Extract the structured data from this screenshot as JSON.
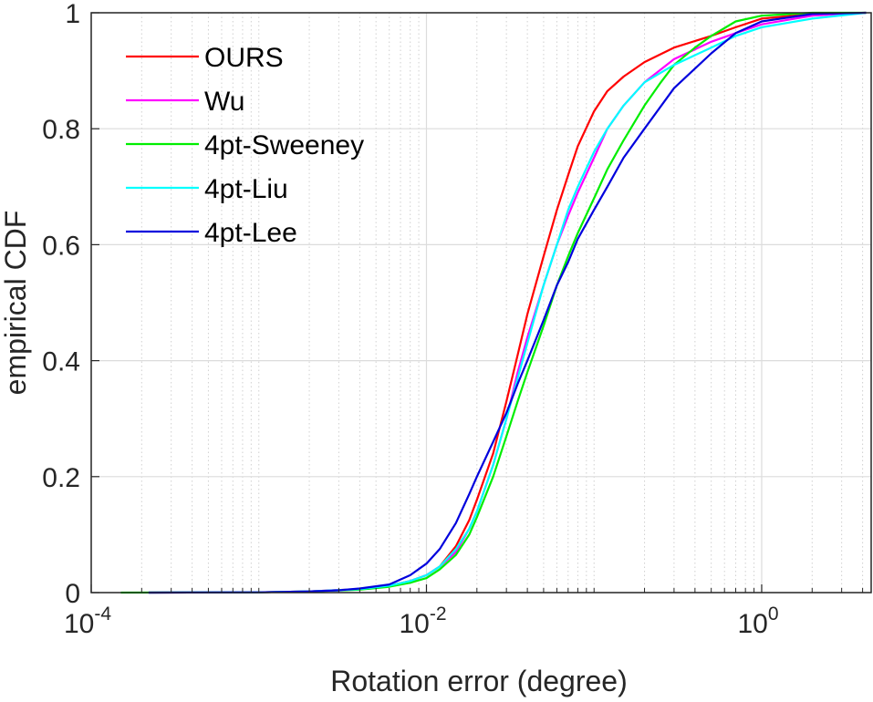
{
  "chart_data": {
    "type": "line",
    "title": "",
    "xlabel": "Rotation error (degree)",
    "ylabel": "empirical CDF",
    "xscale": "log",
    "xlim": [
      0.0001,
      4.5
    ],
    "ylim": [
      0,
      1
    ],
    "grid": true,
    "legend_position": "top-left",
    "x_ticks": [
      {
        "value": 0.0001,
        "base": "10",
        "exp": "-4"
      },
      {
        "value": 0.01,
        "base": "10",
        "exp": "-2"
      },
      {
        "value": 1,
        "base": "10",
        "exp": "0"
      }
    ],
    "y_ticks": [
      {
        "value": 0,
        "label": "0"
      },
      {
        "value": 0.2,
        "label": "0.2"
      },
      {
        "value": 0.4,
        "label": "0.4"
      },
      {
        "value": 0.6,
        "label": "0.6"
      },
      {
        "value": 0.8,
        "label": "0.8"
      },
      {
        "value": 1,
        "label": "1"
      }
    ],
    "series": [
      {
        "name": "OURS",
        "color": "#ff0000",
        "points": [
          [
            0.00022,
            0
          ],
          [
            0.001,
            0.0005
          ],
          [
            0.002,
            0.002
          ],
          [
            0.004,
            0.006
          ],
          [
            0.006,
            0.012
          ],
          [
            0.008,
            0.02
          ],
          [
            0.01,
            0.03
          ],
          [
            0.012,
            0.045
          ],
          [
            0.015,
            0.08
          ],
          [
            0.018,
            0.125
          ],
          [
            0.02,
            0.16
          ],
          [
            0.025,
            0.24
          ],
          [
            0.03,
            0.33
          ],
          [
            0.035,
            0.41
          ],
          [
            0.04,
            0.48
          ],
          [
            0.05,
            0.58
          ],
          [
            0.06,
            0.66
          ],
          [
            0.07,
            0.72
          ],
          [
            0.08,
            0.77
          ],
          [
            0.1,
            0.83
          ],
          [
            0.12,
            0.865
          ],
          [
            0.15,
            0.89
          ],
          [
            0.2,
            0.915
          ],
          [
            0.3,
            0.94
          ],
          [
            0.5,
            0.96
          ],
          [
            0.7,
            0.975
          ],
          [
            1,
            0.99
          ],
          [
            2,
            0.998
          ],
          [
            4.2,
            1
          ]
        ]
      },
      {
        "name": "Wu",
        "color": "#ff00ff",
        "points": [
          [
            0.00022,
            0
          ],
          [
            0.001,
            0.0005
          ],
          [
            0.002,
            0.002
          ],
          [
            0.004,
            0.006
          ],
          [
            0.006,
            0.012
          ],
          [
            0.008,
            0.02
          ],
          [
            0.01,
            0.03
          ],
          [
            0.012,
            0.045
          ],
          [
            0.015,
            0.07
          ],
          [
            0.018,
            0.11
          ],
          [
            0.02,
            0.14
          ],
          [
            0.025,
            0.22
          ],
          [
            0.03,
            0.3
          ],
          [
            0.035,
            0.38
          ],
          [
            0.04,
            0.44
          ],
          [
            0.05,
            0.53
          ],
          [
            0.06,
            0.6
          ],
          [
            0.07,
            0.65
          ],
          [
            0.08,
            0.69
          ],
          [
            0.1,
            0.75
          ],
          [
            0.12,
            0.8
          ],
          [
            0.15,
            0.84
          ],
          [
            0.2,
            0.88
          ],
          [
            0.3,
            0.92
          ],
          [
            0.5,
            0.95
          ],
          [
            0.7,
            0.965
          ],
          [
            1,
            0.98
          ],
          [
            2,
            0.995
          ],
          [
            4.2,
            1
          ]
        ]
      },
      {
        "name": "4pt-Sweeney",
        "color": "#00ee00",
        "points": [
          [
            0.00015,
            0
          ],
          [
            0.001,
            0.0005
          ],
          [
            0.002,
            0.002
          ],
          [
            0.004,
            0.005
          ],
          [
            0.006,
            0.01
          ],
          [
            0.008,
            0.017
          ],
          [
            0.01,
            0.025
          ],
          [
            0.012,
            0.04
          ],
          [
            0.015,
            0.065
          ],
          [
            0.018,
            0.1
          ],
          [
            0.02,
            0.13
          ],
          [
            0.025,
            0.2
          ],
          [
            0.03,
            0.27
          ],
          [
            0.035,
            0.33
          ],
          [
            0.04,
            0.38
          ],
          [
            0.05,
            0.46
          ],
          [
            0.06,
            0.53
          ],
          [
            0.07,
            0.58
          ],
          [
            0.08,
            0.62
          ],
          [
            0.1,
            0.68
          ],
          [
            0.12,
            0.73
          ],
          [
            0.15,
            0.78
          ],
          [
            0.2,
            0.84
          ],
          [
            0.25,
            0.88
          ],
          [
            0.3,
            0.91
          ],
          [
            0.4,
            0.94
          ],
          [
            0.5,
            0.96
          ],
          [
            0.7,
            0.985
          ],
          [
            1,
            0.995
          ],
          [
            2,
            1
          ],
          [
            4.2,
            1
          ]
        ]
      },
      {
        "name": "4pt-Liu",
        "color": "#00ffff",
        "points": [
          [
            0.00022,
            0
          ],
          [
            0.001,
            0.0005
          ],
          [
            0.002,
            0.002
          ],
          [
            0.004,
            0.006
          ],
          [
            0.006,
            0.012
          ],
          [
            0.008,
            0.02
          ],
          [
            0.01,
            0.03
          ],
          [
            0.012,
            0.045
          ],
          [
            0.015,
            0.075
          ],
          [
            0.018,
            0.11
          ],
          [
            0.02,
            0.14
          ],
          [
            0.025,
            0.22
          ],
          [
            0.03,
            0.3
          ],
          [
            0.035,
            0.37
          ],
          [
            0.04,
            0.43
          ],
          [
            0.05,
            0.53
          ],
          [
            0.06,
            0.6
          ],
          [
            0.07,
            0.66
          ],
          [
            0.08,
            0.7
          ],
          [
            0.1,
            0.76
          ],
          [
            0.12,
            0.8
          ],
          [
            0.15,
            0.84
          ],
          [
            0.2,
            0.88
          ],
          [
            0.3,
            0.91
          ],
          [
            0.5,
            0.94
          ],
          [
            0.7,
            0.96
          ],
          [
            1,
            0.975
          ],
          [
            2,
            0.99
          ],
          [
            4.2,
            1
          ]
        ]
      },
      {
        "name": "4pt-Lee",
        "color": "#0000dd",
        "points": [
          [
            0.00022,
            0
          ],
          [
            0.001,
            0.0005
          ],
          [
            0.002,
            0.002
          ],
          [
            0.003,
            0.004
          ],
          [
            0.004,
            0.007
          ],
          [
            0.006,
            0.014
          ],
          [
            0.008,
            0.03
          ],
          [
            0.01,
            0.05
          ],
          [
            0.012,
            0.075
          ],
          [
            0.015,
            0.12
          ],
          [
            0.018,
            0.17
          ],
          [
            0.02,
            0.2
          ],
          [
            0.025,
            0.26
          ],
          [
            0.03,
            0.31
          ],
          [
            0.035,
            0.36
          ],
          [
            0.04,
            0.4
          ],
          [
            0.05,
            0.47
          ],
          [
            0.06,
            0.53
          ],
          [
            0.07,
            0.57
          ],
          [
            0.08,
            0.61
          ],
          [
            0.1,
            0.66
          ],
          [
            0.12,
            0.7
          ],
          [
            0.15,
            0.75
          ],
          [
            0.2,
            0.8
          ],
          [
            0.3,
            0.87
          ],
          [
            0.5,
            0.93
          ],
          [
            0.7,
            0.965
          ],
          [
            1,
            0.985
          ],
          [
            2,
            0.998
          ],
          [
            4.2,
            1
          ]
        ]
      }
    ]
  }
}
